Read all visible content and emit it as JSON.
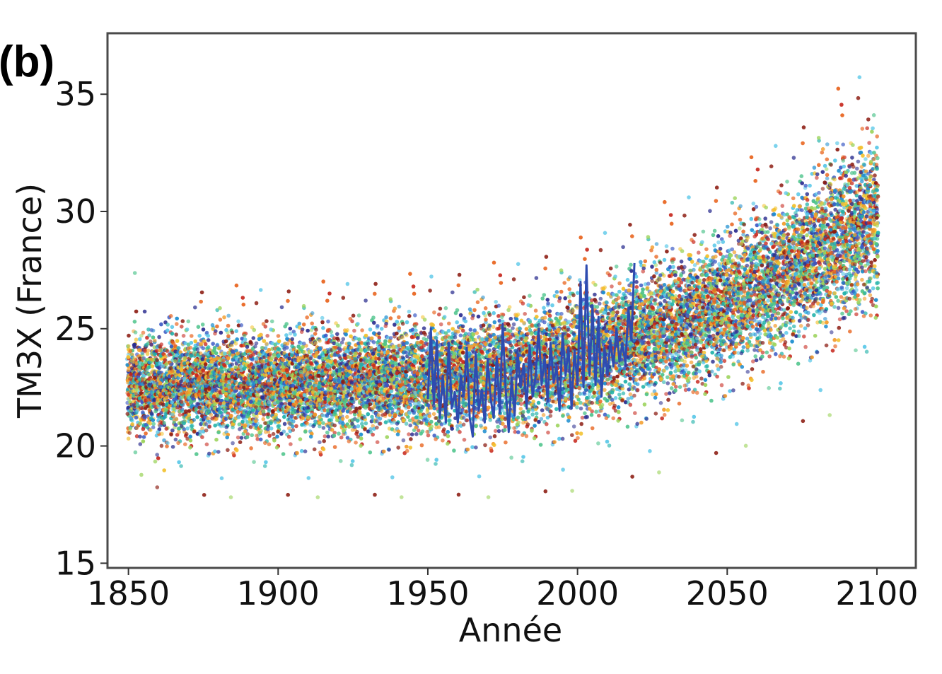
{
  "panel_label": "(b)",
  "chart_data": {
    "type": "scatter",
    "title": "",
    "xlabel": "Année",
    "ylabel": "TM3X (France)",
    "xlim": [
      1843,
      2113
    ],
    "ylim": [
      14.8,
      37.6
    ],
    "x_ticks": [
      1850,
      1900,
      1950,
      2000,
      2050,
      2100
    ],
    "y_ticks": [
      15,
      20,
      25,
      30,
      35
    ],
    "grid": false,
    "legend": "none",
    "scatter_colors": [
      "#2b2d8f",
      "#3a58c4",
      "#1f8fd0",
      "#5bc8e8",
      "#20b2aa",
      "#4cc38a",
      "#9bd35a",
      "#f2c12e",
      "#f39c2a",
      "#e8631c",
      "#c7281e",
      "#8b1a10"
    ],
    "scatter_description_points_per_year": 60,
    "series": [
      {
        "type": "scatter",
        "envelope": [
          {
            "year": 1850,
            "mean": 22.6,
            "spread": 1.6
          },
          {
            "year": 1900,
            "mean": 22.6,
            "spread": 1.6
          },
          {
            "year": 1950,
            "mean": 22.9,
            "spread": 1.7
          },
          {
            "year": 1980,
            "mean": 23.2,
            "spread": 1.8
          },
          {
            "year": 2000,
            "mean": 23.8,
            "spread": 1.9
          },
          {
            "year": 2020,
            "mean": 24.6,
            "spread": 2.0
          },
          {
            "year": 2050,
            "mean": 26.0,
            "spread": 2.1
          },
          {
            "year": 2075,
            "mean": 27.8,
            "spread": 2.3
          },
          {
            "year": 2100,
            "mean": 29.8,
            "spread": 2.6
          }
        ]
      },
      {
        "type": "line",
        "color": "#2e4cb0",
        "x": [
          1950,
          1951,
          1952,
          1953,
          1954,
          1955,
          1956,
          1957,
          1958,
          1959,
          1960,
          1961,
          1962,
          1963,
          1964,
          1965,
          1966,
          1967,
          1968,
          1969,
          1970,
          1971,
          1972,
          1973,
          1974,
          1975,
          1976,
          1977,
          1978,
          1979,
          1980,
          1981,
          1982,
          1983,
          1984,
          1985,
          1986,
          1987,
          1988,
          1989,
          1990,
          1991,
          1992,
          1993,
          1994,
          1995,
          1996,
          1997,
          1998,
          1999,
          2000,
          2001,
          2002,
          2003,
          2004,
          2005,
          2006,
          2007,
          2008,
          2009,
          2010,
          2011,
          2012,
          2013,
          2014,
          2015,
          2016,
          2017,
          2018,
          2019
        ],
        "y": [
          22.0,
          25.0,
          21.8,
          24.5,
          21.2,
          23.0,
          21.0,
          24.4,
          21.6,
          22.3,
          21.0,
          23.0,
          22.1,
          24.2,
          21.2,
          20.4,
          24.0,
          21.5,
          22.4,
          21.0,
          23.7,
          22.0,
          21.2,
          23.8,
          21.4,
          25.2,
          22.4,
          20.6,
          22.9,
          21.3,
          24.0,
          22.5,
          23.5,
          21.6,
          24.3,
          22.1,
          23.0,
          25.0,
          22.6,
          23.8,
          21.9,
          24.4,
          22.7,
          23.4,
          21.5,
          24.8,
          23.0,
          24.2,
          21.6,
          24.1,
          22.6,
          27.0,
          22.5,
          27.7,
          23.0,
          26.0,
          22.6,
          25.5,
          22.1,
          24.2,
          23.0,
          24.5,
          23.4,
          25.0,
          23.6,
          24.4,
          23.5,
          25.9,
          24.5,
          27.8
        ]
      }
    ]
  }
}
